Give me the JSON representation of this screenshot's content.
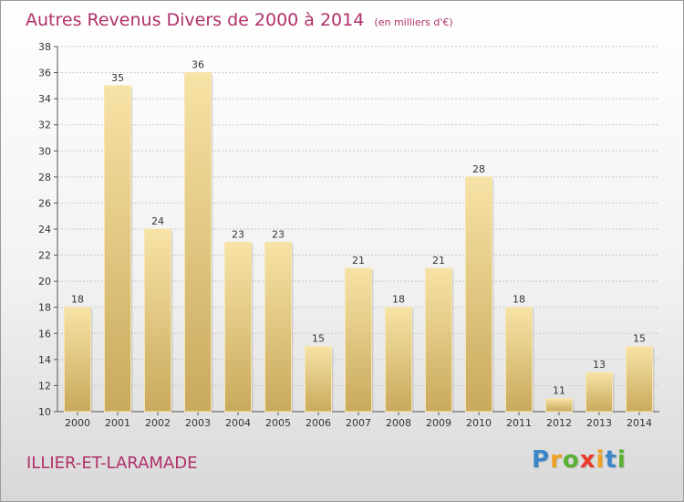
{
  "chart_data": {
    "type": "bar",
    "title": "Autres Revenus Divers de 2000 à 2014",
    "unit": "(en milliers d'€)",
    "categories": [
      "2000",
      "2001",
      "2002",
      "2003",
      "2004",
      "2005",
      "2006",
      "2007",
      "2008",
      "2009",
      "2010",
      "2011",
      "2012",
      "2013",
      "2014"
    ],
    "values": [
      18,
      35,
      24,
      36,
      23,
      23,
      15,
      21,
      18,
      21,
      28,
      18,
      11,
      13,
      15
    ],
    "ylim": [
      10,
      38
    ],
    "yticks": [
      10,
      12,
      14,
      16,
      18,
      20,
      22,
      24,
      26,
      28,
      30,
      32,
      34,
      36,
      38
    ],
    "grid": true,
    "bar_color": "#e8cd7e"
  },
  "place_name": "ILLIER-ET-LARAMADE",
  "logo": {
    "letters": [
      "P",
      "r",
      "o",
      "x",
      "i",
      "t",
      "i"
    ],
    "colors": [
      "#3a86c8",
      "#f0a020",
      "#5ab031",
      "#e8392b",
      "#f0a020",
      "#3a86c8",
      "#5ab031"
    ]
  }
}
